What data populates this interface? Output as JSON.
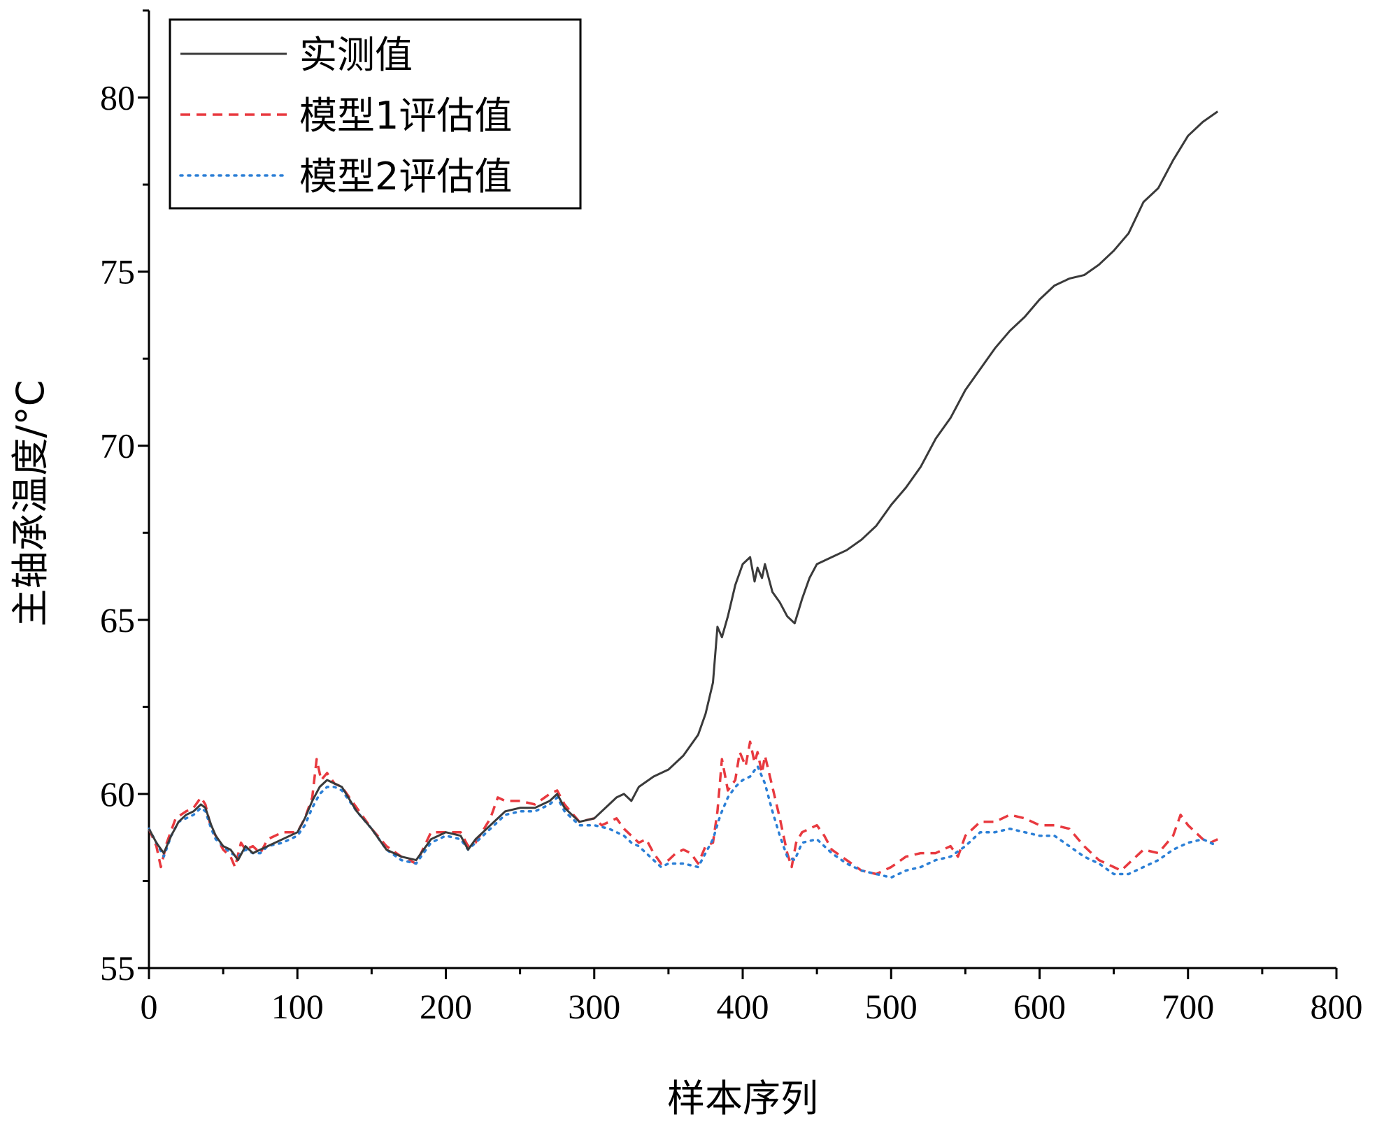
{
  "chart_data": {
    "type": "line",
    "title": "",
    "xlabel": "样本序列",
    "ylabel": "主轴承温度/°C",
    "xlim": [
      0,
      800
    ],
    "ylim": [
      55,
      82.5
    ],
    "xticks": [
      0,
      100,
      200,
      300,
      400,
      500,
      600,
      700,
      800
    ],
    "yticks": [
      55,
      60,
      65,
      70,
      75,
      80
    ],
    "legend_position": "top-left",
    "series": [
      {
        "name": "实测值",
        "color": "#3a3a3a",
        "style": "solid",
        "x": [
          0,
          5,
          10,
          15,
          20,
          25,
          30,
          35,
          38,
          42,
          45,
          50,
          55,
          60,
          65,
          70,
          75,
          80,
          90,
          100,
          105,
          110,
          115,
          120,
          125,
          130,
          140,
          150,
          160,
          170,
          180,
          190,
          200,
          210,
          215,
          220,
          230,
          240,
          250,
          260,
          270,
          275,
          280,
          290,
          300,
          305,
          310,
          315,
          320,
          325,
          330,
          340,
          350,
          360,
          370,
          375,
          380,
          383,
          386,
          390,
          395,
          400,
          405,
          408,
          410,
          413,
          415,
          420,
          425,
          430,
          435,
          440,
          445,
          450,
          460,
          470,
          480,
          490,
          500,
          510,
          520,
          530,
          540,
          550,
          560,
          570,
          580,
          590,
          600,
          610,
          620,
          630,
          640,
          650,
          660,
          670,
          680,
          690,
          700,
          710,
          720
        ],
        "values": [
          59.0,
          58.6,
          58.3,
          58.8,
          59.2,
          59.4,
          59.5,
          59.7,
          59.6,
          59.1,
          58.8,
          58.5,
          58.4,
          58.1,
          58.5,
          58.3,
          58.4,
          58.5,
          58.7,
          58.9,
          59.3,
          59.8,
          60.2,
          60.4,
          60.3,
          60.2,
          59.5,
          59.0,
          58.4,
          58.2,
          58.1,
          58.7,
          58.9,
          58.8,
          58.4,
          58.7,
          59.1,
          59.5,
          59.6,
          59.6,
          59.8,
          60.0,
          59.6,
          59.2,
          59.3,
          59.5,
          59.7,
          59.9,
          60.0,
          59.8,
          60.2,
          60.5,
          60.7,
          61.1,
          61.7,
          62.3,
          63.2,
          64.8,
          64.5,
          65.1,
          66.0,
          66.6,
          66.8,
          66.1,
          66.5,
          66.2,
          66.6,
          65.8,
          65.5,
          65.1,
          64.9,
          65.6,
          66.2,
          66.6,
          66.8,
          67.0,
          67.3,
          67.7,
          68.3,
          68.8,
          69.4,
          70.2,
          70.8,
          71.6,
          72.2,
          72.8,
          73.3,
          73.7,
          74.2,
          74.6,
          74.8,
          74.9,
          75.2,
          75.6,
          76.1,
          77.0,
          77.4,
          78.2,
          78.9,
          79.3,
          79.6
        ]
      },
      {
        "name": "模型1评估值",
        "color": "#e8393f",
        "style": "dashed",
        "x": [
          0,
          5,
          8,
          12,
          18,
          25,
          30,
          35,
          38,
          42,
          45,
          50,
          55,
          58,
          62,
          65,
          70,
          75,
          80,
          90,
          100,
          105,
          110,
          113,
          116,
          120,
          125,
          130,
          140,
          150,
          160,
          170,
          180,
          190,
          200,
          210,
          215,
          220,
          230,
          235,
          240,
          250,
          260,
          270,
          275,
          280,
          290,
          300,
          305,
          310,
          315,
          320,
          325,
          330,
          335,
          340,
          345,
          350,
          355,
          360,
          365,
          370,
          375,
          380,
          383,
          386,
          390,
          395,
          398,
          402,
          405,
          408,
          410,
          413,
          415,
          420,
          425,
          430,
          433,
          436,
          440,
          445,
          450,
          455,
          460,
          470,
          480,
          490,
          500,
          510,
          520,
          530,
          540,
          545,
          550,
          560,
          570,
          580,
          590,
          600,
          610,
          620,
          630,
          640,
          650,
          655,
          660,
          670,
          680,
          690,
          695,
          700,
          705,
          710,
          715,
          720
        ],
        "values": [
          59.0,
          58.5,
          57.9,
          58.6,
          59.3,
          59.5,
          59.6,
          59.9,
          59.7,
          59.0,
          58.8,
          58.4,
          58.2,
          57.9,
          58.6,
          58.4,
          58.5,
          58.3,
          58.7,
          58.9,
          58.9,
          59.3,
          59.9,
          61.0,
          60.4,
          60.6,
          60.3,
          60.2,
          59.6,
          59.0,
          58.5,
          58.2,
          58.0,
          58.9,
          58.9,
          58.9,
          58.5,
          58.6,
          59.3,
          59.9,
          59.8,
          59.8,
          59.7,
          60.0,
          60.1,
          59.7,
          59.2,
          59.3,
          59.1,
          59.2,
          59.3,
          59.0,
          58.8,
          58.6,
          58.7,
          58.3,
          58.0,
          58.1,
          58.3,
          58.4,
          58.3,
          58.0,
          58.5,
          58.6,
          59.5,
          61.0,
          60.1,
          60.4,
          61.2,
          60.8,
          61.5,
          60.9,
          61.2,
          60.6,
          61.1,
          60.2,
          59.3,
          58.3,
          57.9,
          58.6,
          58.9,
          59.0,
          59.1,
          58.8,
          58.4,
          58.1,
          57.8,
          57.7,
          57.9,
          58.2,
          58.3,
          58.3,
          58.5,
          58.2,
          58.8,
          59.2,
          59.2,
          59.4,
          59.3,
          59.1,
          59.1,
          59.0,
          58.5,
          58.1,
          57.9,
          57.8,
          58.0,
          58.4,
          58.3,
          58.8,
          59.4,
          59.1,
          58.9,
          58.7,
          58.6,
          58.7
        ]
      },
      {
        "name": "模型2评估值",
        "color": "#2b7fd6",
        "style": "dotted",
        "x": [
          0,
          5,
          10,
          15,
          20,
          25,
          30,
          35,
          38,
          42,
          45,
          50,
          55,
          60,
          65,
          70,
          75,
          80,
          90,
          100,
          105,
          110,
          115,
          120,
          125,
          130,
          140,
          150,
          160,
          170,
          180,
          190,
          200,
          210,
          215,
          220,
          230,
          240,
          250,
          260,
          270,
          275,
          280,
          290,
          300,
          310,
          320,
          325,
          330,
          335,
          340,
          345,
          350,
          360,
          370,
          375,
          380,
          385,
          390,
          395,
          400,
          405,
          410,
          415,
          420,
          425,
          430,
          435,
          440,
          450,
          460,
          470,
          480,
          490,
          500,
          510,
          520,
          530,
          540,
          550,
          560,
          570,
          580,
          590,
          600,
          610,
          620,
          630,
          640,
          650,
          660,
          670,
          680,
          690,
          700,
          710,
          720
        ],
        "values": [
          59.0,
          58.6,
          58.2,
          58.8,
          59.2,
          59.3,
          59.4,
          59.6,
          59.5,
          59.0,
          58.7,
          58.5,
          58.3,
          58.2,
          58.4,
          58.3,
          58.3,
          58.5,
          58.6,
          58.8,
          59.1,
          59.6,
          60.0,
          60.2,
          60.2,
          60.1,
          59.5,
          59.0,
          58.4,
          58.1,
          58.0,
          58.6,
          58.8,
          58.7,
          58.4,
          58.6,
          59.0,
          59.4,
          59.5,
          59.5,
          59.7,
          59.9,
          59.5,
          59.1,
          59.1,
          59.0,
          58.8,
          58.6,
          58.5,
          58.3,
          58.1,
          57.9,
          58.0,
          58.0,
          57.9,
          58.3,
          58.7,
          59.4,
          59.9,
          60.2,
          60.4,
          60.5,
          60.8,
          60.3,
          59.5,
          58.8,
          58.2,
          58.1,
          58.6,
          58.7,
          58.3,
          58.0,
          57.8,
          57.7,
          57.6,
          57.8,
          57.9,
          58.1,
          58.2,
          58.5,
          58.9,
          58.9,
          59.0,
          58.9,
          58.8,
          58.8,
          58.5,
          58.2,
          58.0,
          57.7,
          57.7,
          57.9,
          58.1,
          58.4,
          58.6,
          58.7,
          58.5
        ]
      }
    ]
  }
}
